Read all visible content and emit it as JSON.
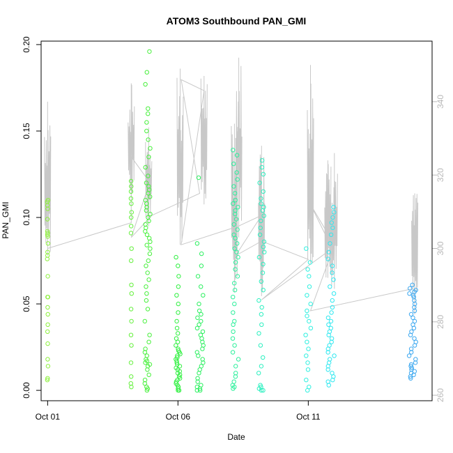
{
  "chart_data": {
    "type": "scatter",
    "title": "ATOM3 Southbound PAN_GMI",
    "xlabel": "Date",
    "ylabel": "PAN_GMI",
    "x_unit": "date",
    "xlim": [
      "2016-09-30T18:00",
      "2016-10-15T18:00"
    ],
    "ylim": [
      -0.006,
      0.202
    ],
    "x_ticks": [
      {
        "date": "2016-10-01T00:00",
        "label": "Oct 01"
      },
      {
        "date": "2016-10-06T00:00",
        "label": "Oct 06"
      },
      {
        "date": "2016-10-11T00:00",
        "label": "Oct 11"
      }
    ],
    "y_ticks": [
      {
        "value": 0.0,
        "label": "0.00"
      },
      {
        "value": 0.05,
        "label": "0.05"
      },
      {
        "value": 0.1,
        "label": "0.10"
      },
      {
        "value": 0.15,
        "label": "0.15"
      },
      {
        "value": 0.2,
        "label": "0.20"
      }
    ],
    "y2_ticks": [
      {
        "value": 260,
        "label": "260"
      },
      {
        "value": 280,
        "label": "280"
      },
      {
        "value": 300,
        "label": "300"
      },
      {
        "value": 320,
        "label": "320"
      },
      {
        "value": 340,
        "label": "340"
      }
    ],
    "y2lim": [
      258.5,
      356.5
    ],
    "point_color_note": "points colored by time, yellow-green to blue",
    "colors": {
      "line": "#c8c8c8",
      "axis": "#000000",
      "right_axis": "#b8b8b8"
    },
    "clusters": [
      {
        "date": "2016-10-01T00:00",
        "width_days": 0.03,
        "color": "#8cf03c",
        "values": [
          0.007,
          0.006,
          0.014,
          0.018,
          0.027,
          0.034,
          0.038,
          0.044,
          0.048,
          0.054,
          0.054,
          0.066,
          0.076,
          0.078,
          0.08,
          0.085,
          0.089,
          0.09,
          0.091,
          0.092,
          0.099,
          0.105,
          0.107,
          0.109,
          0.11
        ]
      },
      {
        "date": "2016-10-04T05:00",
        "width_days": 0.03,
        "color": "#64f03c",
        "values": [
          0.002,
          0.004,
          0.008,
          0.016,
          0.026,
          0.032,
          0.04,
          0.047,
          0.056,
          0.061,
          0.075,
          0.082,
          0.091,
          0.095,
          0.1,
          0.103,
          0.108,
          0.111,
          0.115,
          0.118,
          0.121
        ]
      },
      {
        "date": "2016-10-04T20:00",
        "width_days": 0.22,
        "color": "#48f03c",
        "values": [
          0.0,
          0.001,
          0.002,
          0.004,
          0.006,
          0.009,
          0.012,
          0.014,
          0.015,
          0.016,
          0.017,
          0.018,
          0.02,
          0.022,
          0.024,
          0.028,
          0.032,
          0.04,
          0.047,
          0.052,
          0.056,
          0.06,
          0.064,
          0.068,
          0.072,
          0.075,
          0.079,
          0.082,
          0.084,
          0.086,
          0.088,
          0.09,
          0.092,
          0.094,
          0.096,
          0.098,
          0.1,
          0.102,
          0.104,
          0.106,
          0.108,
          0.11,
          0.112,
          0.114,
          0.116,
          0.118,
          0.12,
          0.124,
          0.129,
          0.135,
          0.14,
          0.145,
          0.15,
          0.155,
          0.16,
          0.163,
          0.177,
          0.184,
          0.196
        ]
      },
      {
        "date": "2016-10-06T00:00",
        "width_days": 0.18,
        "color": "#30f040",
        "values": [
          0.0,
          0.0,
          0.001,
          0.002,
          0.003,
          0.004,
          0.005,
          0.006,
          0.007,
          0.008,
          0.009,
          0.01,
          0.011,
          0.012,
          0.013,
          0.014,
          0.015,
          0.016,
          0.017,
          0.018,
          0.019,
          0.02,
          0.021,
          0.022,
          0.023,
          0.024,
          0.026,
          0.028,
          0.03,
          0.033,
          0.036,
          0.04,
          0.045,
          0.05,
          0.055,
          0.06,
          0.066,
          0.072,
          0.077
        ]
      },
      {
        "date": "2016-10-06T20:30",
        "width_days": 0.24,
        "color": "#2cf060",
        "values": [
          0.0,
          0.0,
          0.001,
          0.002,
          0.003,
          0.005,
          0.007,
          0.01,
          0.012,
          0.014,
          0.016,
          0.018,
          0.02,
          0.022,
          0.024,
          0.026,
          0.028,
          0.03,
          0.032,
          0.034,
          0.036,
          0.038,
          0.04,
          0.042,
          0.044,
          0.046,
          0.05,
          0.055,
          0.06,
          0.066,
          0.072,
          0.079,
          0.085,
          0.123
        ]
      },
      {
        "date": "2016-10-08T05:00",
        "width_days": 0.25,
        "color": "#2cf09c",
        "values": [
          0.001,
          0.002,
          0.003,
          0.005,
          0.008,
          0.01,
          0.014,
          0.018,
          0.022,
          0.026,
          0.03,
          0.034,
          0.038,
          0.04,
          0.045,
          0.05,
          0.054,
          0.058,
          0.062,
          0.066,
          0.07,
          0.074,
          0.077,
          0.08,
          0.082,
          0.085,
          0.088,
          0.09,
          0.093,
          0.096,
          0.099,
          0.102,
          0.104,
          0.106,
          0.108,
          0.11,
          0.114,
          0.118,
          0.122,
          0.126,
          0.131,
          0.136,
          0.139
        ]
      },
      {
        "date": "2016-10-09T05:00",
        "width_days": 0.22,
        "color": "#2cf0c0",
        "values": [
          0.0,
          0.0,
          0.001,
          0.002,
          0.003,
          0.01,
          0.014,
          0.019,
          0.026,
          0.033,
          0.038,
          0.044,
          0.048,
          0.052,
          0.058,
          0.063,
          0.068,
          0.073,
          0.077,
          0.08,
          0.083,
          0.086,
          0.09,
          0.094,
          0.098,
          0.101,
          0.104,
          0.106,
          0.108,
          0.111,
          0.115,
          0.12,
          0.125,
          0.129,
          0.133
        ]
      },
      {
        "date": "2016-10-11T00:00",
        "width_days": 0.2,
        "color": "#30f0e0",
        "values": [
          0.0,
          0.002,
          0.006,
          0.012,
          0.016,
          0.02,
          0.024,
          0.028,
          0.032,
          0.036,
          0.04,
          0.043,
          0.046,
          0.05,
          0.055,
          0.06,
          0.066,
          0.07,
          0.074,
          0.082
        ]
      },
      {
        "date": "2016-10-11T21:00",
        "width_days": 0.24,
        "color": "#30e8f0",
        "values": [
          0.003,
          0.005,
          0.006,
          0.008,
          0.01,
          0.012,
          0.014,
          0.016,
          0.018,
          0.02,
          0.022,
          0.024,
          0.026,
          0.028,
          0.03,
          0.032,
          0.034,
          0.036,
          0.038,
          0.04,
          0.042,
          0.045,
          0.048,
          0.052,
          0.056,
          0.06,
          0.064,
          0.068,
          0.072,
          0.076,
          0.08,
          0.085,
          0.09,
          0.094,
          0.097,
          0.1,
          0.103,
          0.106
        ]
      },
      {
        "date": "2016-10-15T00:00",
        "width_days": 0.26,
        "color": "#3ca8f0",
        "values": [
          0.007,
          0.008,
          0.009,
          0.01,
          0.011,
          0.012,
          0.013,
          0.014,
          0.015,
          0.016,
          0.018,
          0.02,
          0.022,
          0.024,
          0.026,
          0.028,
          0.03,
          0.032,
          0.034,
          0.036,
          0.038,
          0.04,
          0.042,
          0.044,
          0.046,
          0.048,
          0.05,
          0.052,
          0.054,
          0.055,
          0.056,
          0.057,
          0.058,
          0.059,
          0.061
        ]
      }
    ],
    "secondary_series": {
      "axis": "right",
      "color": "#c8c8c8",
      "spikes": [
        {
          "date": "2016-10-01T00:00",
          "low": 298,
          "high": 340
        },
        {
          "date": "2016-10-04T05:00",
          "low": 314,
          "high": 345
        },
        {
          "date": "2016-10-04T21:00",
          "low": 306,
          "high": 333
        },
        {
          "date": "2016-10-06T02:00",
          "low": 301,
          "high": 349
        },
        {
          "date": "2016-10-07T00:00",
          "low": 312,
          "high": 347
        },
        {
          "date": "2016-10-08T04:00",
          "low": 288,
          "high": 334
        },
        {
          "date": "2016-10-08T08:00",
          "low": 303,
          "high": 352
        },
        {
          "date": "2016-10-09T05:00",
          "low": 287,
          "high": 328
        },
        {
          "date": "2016-10-11T02:00",
          "low": 296,
          "high": 350
        },
        {
          "date": "2016-10-11T18:00",
          "low": 292,
          "high": 324
        },
        {
          "date": "2016-10-12T00:00",
          "low": 289,
          "high": 326
        },
        {
          "date": "2016-10-15T02:00",
          "low": 282,
          "high": 315
        }
      ],
      "path": [
        {
          "date": "2016-10-01T00:00",
          "value": 300
        },
        {
          "date": "2016-10-04T05:00",
          "value": 307
        },
        {
          "date": "2016-10-04T05:00",
          "value": 325
        },
        {
          "date": "2016-10-04T22:00",
          "value": 318
        },
        {
          "date": "2016-10-04T05:00",
          "value": 303
        },
        {
          "date": "2016-10-05T00:00",
          "value": 309
        },
        {
          "date": "2016-10-06T20:00",
          "value": 315
        },
        {
          "date": "2016-10-06T03:00",
          "value": 346
        },
        {
          "date": "2016-10-07T00:00",
          "value": 343
        },
        {
          "date": "2016-10-06T03:00",
          "value": 301
        },
        {
          "date": "2016-10-08T07:00",
          "value": 306
        },
        {
          "date": "2016-10-09T05:00",
          "value": 309
        },
        {
          "date": "2016-10-08T05:00",
          "value": 298
        },
        {
          "date": "2016-10-09T05:00",
          "value": 302
        },
        {
          "date": "2016-10-11T00:00",
          "value": 297
        },
        {
          "date": "2016-10-09T05:00",
          "value": 286
        },
        {
          "date": "2016-10-11T22:00",
          "value": 300
        },
        {
          "date": "2016-10-11T02:00",
          "value": 312
        },
        {
          "date": "2016-10-12T00:00",
          "value": 301
        },
        {
          "date": "2016-10-11T02:00",
          "value": 283
        },
        {
          "date": "2016-10-15T00:00",
          "value": 289
        }
      ]
    }
  }
}
